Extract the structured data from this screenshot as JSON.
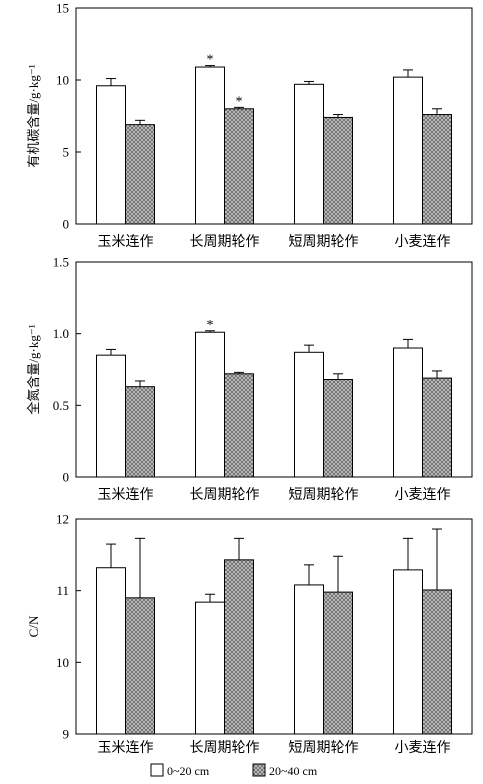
{
  "colors": {
    "series_1_fill": "#ffffff",
    "series_2_fill": "#c4c4c4",
    "hatch_line": "#5a5a5a",
    "axis": "#000000"
  },
  "legend": {
    "placement": "bottom",
    "items": [
      "0~20 cm",
      "20~40 cm"
    ]
  },
  "chart_data": [
    {
      "type": "bar",
      "ylabel": "有机碳含量/g·kg⁻¹",
      "categories": [
        "玉米连作",
        "长周期轮作",
        "短周期轮作",
        "小麦连作"
      ],
      "ylim": [
        0,
        15
      ],
      "yticks": [
        0,
        5,
        10,
        15
      ],
      "ytick_labels": [
        "0",
        "5",
        "10",
        "15"
      ],
      "grid": false,
      "series": [
        {
          "name": "0~20 cm",
          "values": [
            9.6,
            10.9,
            9.7,
            10.2
          ],
          "error": [
            0.5,
            0.1,
            0.2,
            0.5
          ]
        },
        {
          "name": "20~40 cm",
          "values": [
            6.9,
            8.0,
            7.4,
            7.6
          ],
          "error": [
            0.3,
            0.1,
            0.2,
            0.4
          ]
        }
      ],
      "annotations": [
        {
          "category": "长周期轮作",
          "series": "0~20 cm",
          "text": "*"
        },
        {
          "category": "长周期轮作",
          "series": "20~40 cm",
          "text": "*"
        }
      ]
    },
    {
      "type": "bar",
      "ylabel": "全氮含量/g·kg⁻¹",
      "categories": [
        "玉米连作",
        "长周期轮作",
        "短周期轮作",
        "小麦连作"
      ],
      "ylim": [
        0,
        1.5
      ],
      "yticks": [
        0,
        0.5,
        1.0,
        1.5
      ],
      "ytick_labels": [
        "0",
        "0.5",
        "1.0",
        "1.5"
      ],
      "grid": false,
      "series": [
        {
          "name": "0~20 cm",
          "values": [
            0.85,
            1.01,
            0.87,
            0.9
          ],
          "error": [
            0.04,
            0.01,
            0.05,
            0.06
          ]
        },
        {
          "name": "20~40 cm",
          "values": [
            0.63,
            0.72,
            0.68,
            0.69
          ],
          "error": [
            0.04,
            0.01,
            0.04,
            0.05
          ]
        }
      ],
      "annotations": [
        {
          "category": "长周期轮作",
          "series": "0~20 cm",
          "text": "*"
        }
      ]
    },
    {
      "type": "bar",
      "ylabel": "C/N",
      "categories": [
        "玉米连作",
        "长周期轮作",
        "短周期轮作",
        "小麦连作"
      ],
      "ylim": [
        9,
        12
      ],
      "yticks": [
        9,
        10,
        11,
        12
      ],
      "ytick_labels": [
        "9",
        "10",
        "11",
        "12"
      ],
      "grid": false,
      "series": [
        {
          "name": "0~20 cm",
          "values": [
            11.32,
            10.84,
            11.08,
            11.29
          ],
          "error": [
            0.33,
            0.11,
            0.28,
            0.44
          ]
        },
        {
          "name": "20~40 cm",
          "values": [
            10.9,
            11.43,
            10.98,
            11.01
          ],
          "error": [
            0.83,
            0.3,
            0.5,
            0.85
          ]
        }
      ],
      "annotations": []
    }
  ]
}
